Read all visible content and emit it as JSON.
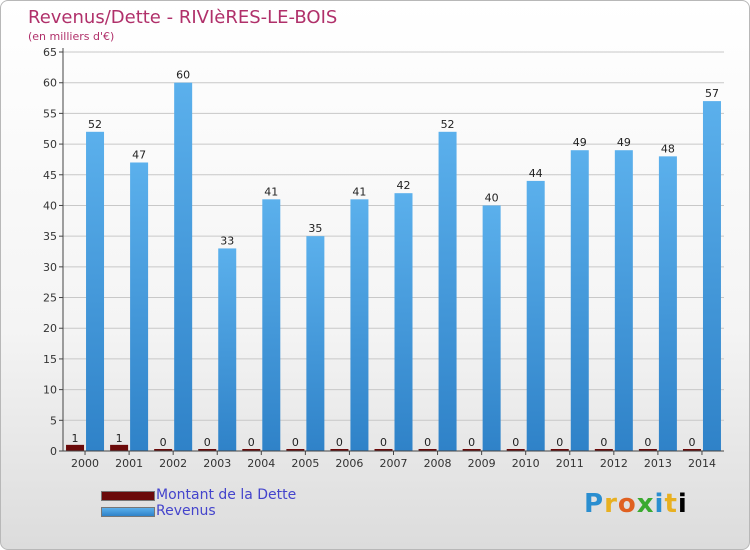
{
  "header": {
    "title": "Revenus/Dette - RIVIèRES-LE-BOIS",
    "subtitle": "(en milliers d'€)"
  },
  "legend": {
    "items": [
      {
        "label": "Montant de la Dette",
        "color": "#6b0a0a"
      },
      {
        "label": "Revenus",
        "color": "#4a9ee0"
      }
    ]
  },
  "logo": {
    "text": "Proxiti"
  },
  "colors": {
    "debt": "#6b0a0a",
    "revenue_light": "#5bb0ec",
    "revenue_dark": "#2f82c8",
    "grid": "#c8c8c8"
  },
  "chart_data": {
    "type": "bar",
    "categories": [
      "2000",
      "2001",
      "2002",
      "2003",
      "2004",
      "2005",
      "2006",
      "2007",
      "2008",
      "2009",
      "2010",
      "2011",
      "2012",
      "2013",
      "2014"
    ],
    "series": [
      {
        "name": "Montant de la Dette",
        "values": [
          1,
          1,
          0,
          0,
          0,
          0,
          0,
          0,
          0,
          0,
          0,
          0,
          0,
          0,
          0
        ]
      },
      {
        "name": "Revenus",
        "values": [
          52,
          47,
          60,
          33,
          41,
          35,
          41,
          42,
          52,
          40,
          44,
          49,
          49,
          48,
          57
        ]
      }
    ],
    "yticks": [
      0,
      5,
      10,
      15,
      20,
      25,
      30,
      35,
      40,
      45,
      50,
      55,
      60,
      65
    ],
    "ylim": [
      0,
      65
    ],
    "grid": true,
    "legend_position": "bottom-left"
  }
}
